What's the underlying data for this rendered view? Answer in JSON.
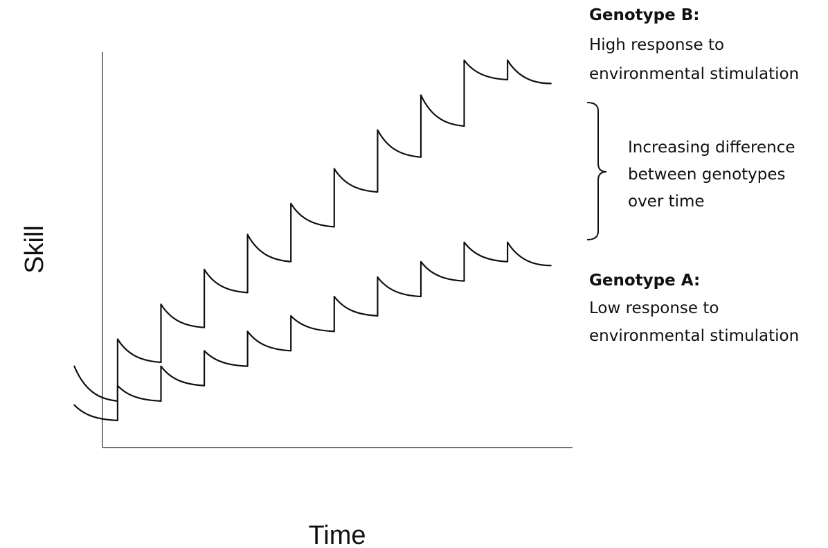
{
  "chart_data": {
    "type": "line",
    "title": "",
    "xlabel": "Time",
    "ylabel": "Skill",
    "x": [
      0,
      1,
      2,
      3,
      4,
      5,
      6,
      7,
      8,
      9,
      10
    ],
    "xlim": [
      -0.35,
      10.5
    ],
    "ylim": [
      0,
      100
    ],
    "grid": false,
    "legend": "right",
    "series": [
      {
        "name": "Genotype B:",
        "description": [
          "High response to",
          "environmental stimulation"
        ],
        "step_start": [
          21,
          28,
          37,
          46,
          55,
          63,
          72,
          82,
          91,
          100
        ],
        "step_end": [
          12,
          22,
          31,
          40,
          48,
          57,
          66,
          75,
          83,
          95
        ],
        "tail_end": 94
      },
      {
        "name": "Genotype A:",
        "description": [
          "Low response to",
          "environmental stimulation"
        ],
        "step_start": [
          11,
          16,
          21,
          25,
          30,
          34,
          39,
          44,
          48,
          53
        ],
        "step_end": [
          7,
          12,
          16,
          21,
          25,
          30,
          34,
          39,
          43,
          48
        ],
        "tail_end": 47
      }
    ],
    "annotations": [
      {
        "type": "bracket",
        "between": [
          "Genotype B:",
          "Genotype A:"
        ],
        "text": [
          "Increasing difference",
          "between genotypes",
          "over time"
        ]
      }
    ]
  }
}
